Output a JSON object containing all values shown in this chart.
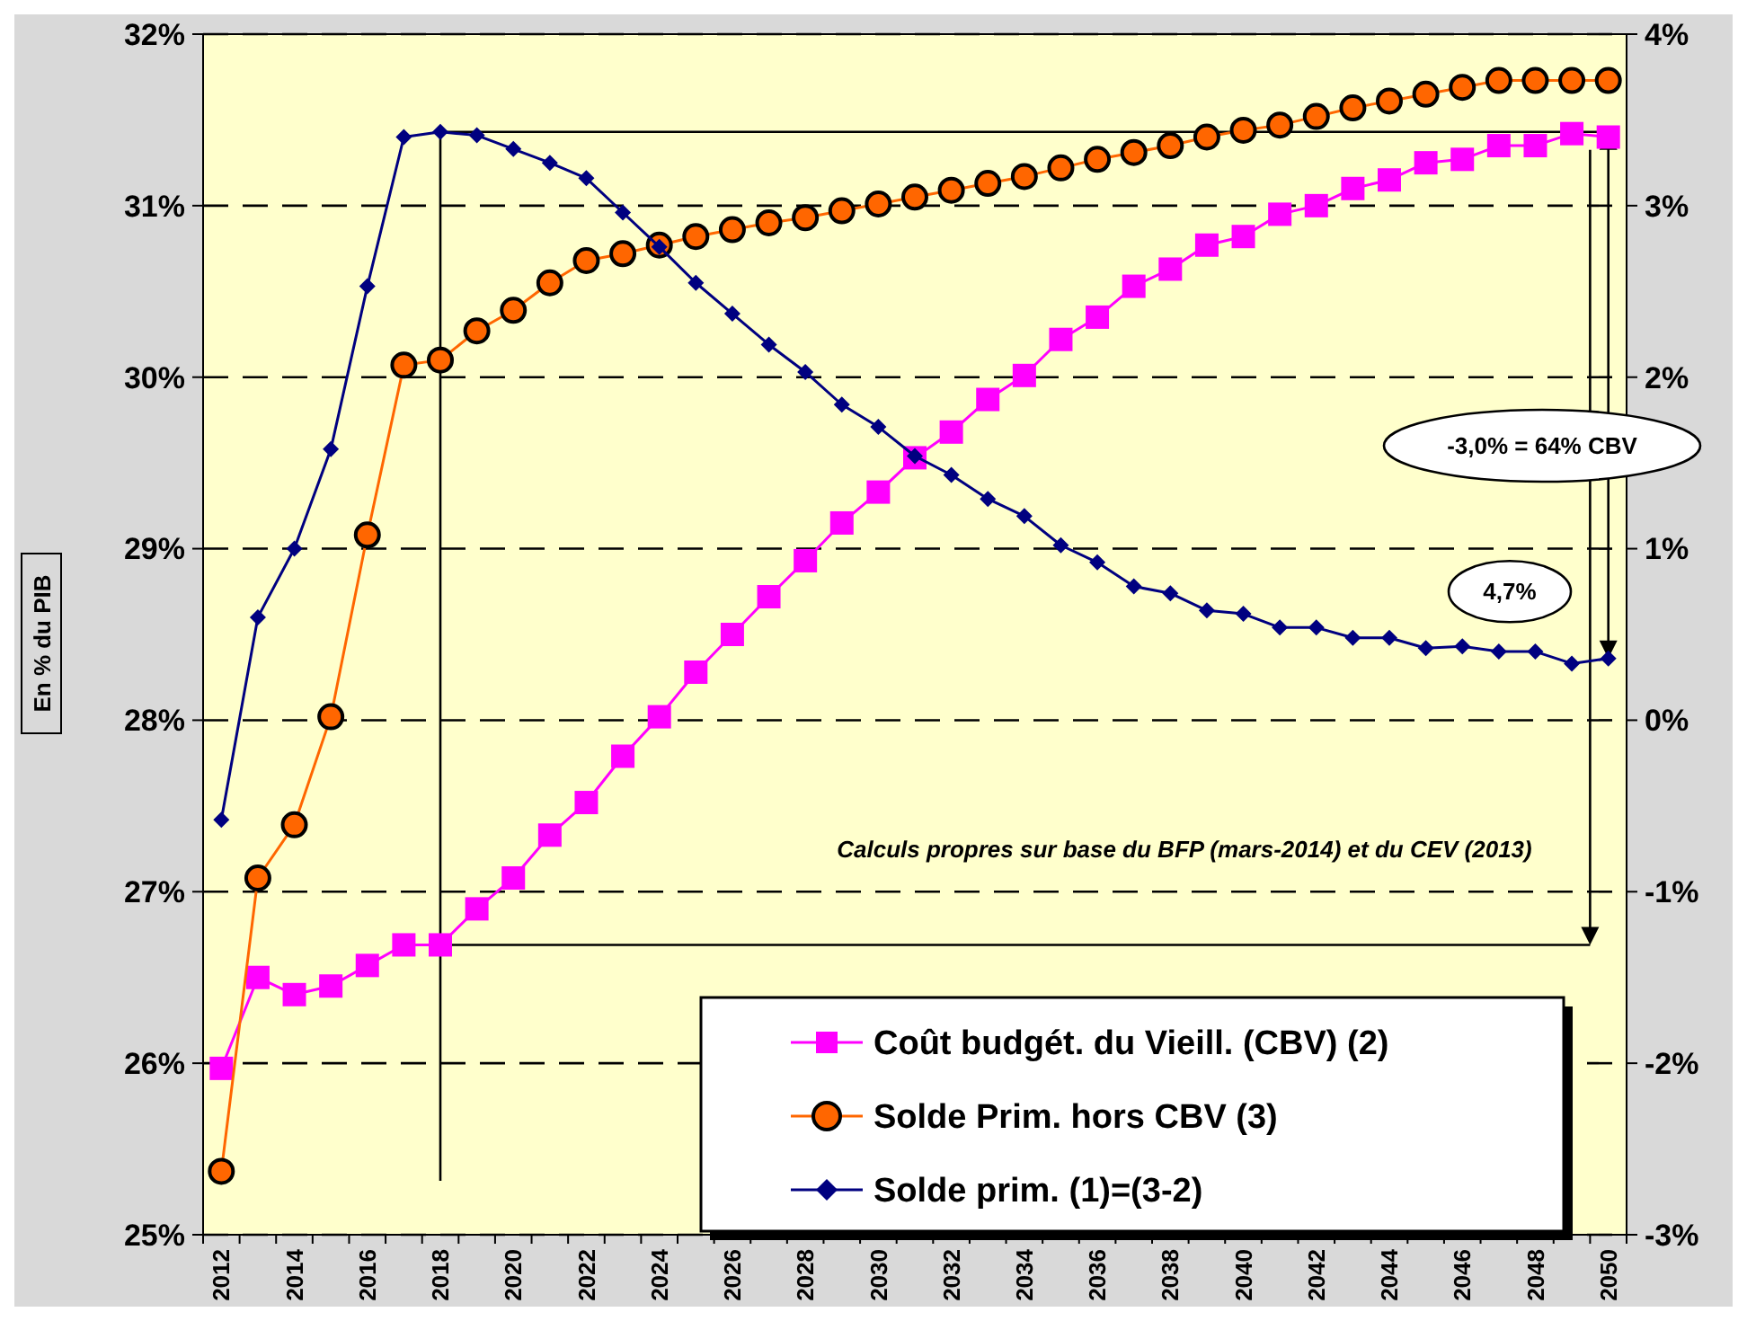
{
  "chart_data": {
    "type": "line",
    "ylabel": "En % du PIB",
    "categories": [
      "2012",
      null,
      "2014",
      null,
      "2016",
      null,
      "2018",
      null,
      "2020",
      null,
      "2022",
      null,
      "2024",
      null,
      "2026",
      null,
      "2028",
      null,
      "2030",
      null,
      "2032",
      null,
      "2034",
      null,
      "2036",
      null,
      "2038",
      null,
      "2040",
      null,
      "2042",
      null,
      "2044",
      null,
      "2046",
      null,
      "2048",
      null,
      "2050"
    ],
    "series": [
      {
        "name": "Coût budgét. du Vieill. (CBV) (2)",
        "color": "#ff00ff",
        "marker": "square",
        "values": [
          25.97,
          26.5,
          26.4,
          26.45,
          26.57,
          26.69,
          26.69,
          26.9,
          27.08,
          27.33,
          27.52,
          27.79,
          28.02,
          28.28,
          28.5,
          28.72,
          28.93,
          29.15,
          29.33,
          29.53,
          29.68,
          29.87,
          30.01,
          30.22,
          30.35,
          30.53,
          30.63,
          30.77,
          30.82,
          30.95,
          31.0,
          31.1,
          31.15,
          31.25,
          31.27,
          31.35,
          31.35,
          31.42,
          31.4
        ]
      },
      {
        "name": "Solde Prim. hors CBV (3)",
        "color": "#ff6600",
        "marker": "circle",
        "values": [
          25.37,
          27.08,
          27.39,
          28.02,
          29.08,
          30.07,
          30.1,
          30.27,
          30.39,
          30.55,
          30.68,
          30.72,
          30.77,
          30.82,
          30.86,
          30.9,
          30.93,
          30.97,
          31.01,
          31.05,
          31.09,
          31.13,
          31.17,
          31.22,
          31.27,
          31.31,
          31.35,
          31.4,
          31.44,
          31.47,
          31.52,
          31.57,
          31.61,
          31.65,
          31.69,
          31.73,
          31.73,
          31.73,
          31.73
        ]
      },
      {
        "name": "Solde prim. (1)=(3-2)",
        "color": "#000080",
        "marker": "diamond",
        "axis": "y2",
        "values": [
          -0.58,
          0.6,
          1.0,
          1.58,
          2.53,
          3.4,
          3.43,
          3.41,
          3.33,
          3.25,
          3.16,
          2.96,
          2.76,
          2.55,
          2.37,
          2.19,
          2.03,
          1.84,
          1.71,
          1.54,
          1.43,
          1.29,
          1.19,
          1.02,
          0.92,
          0.78,
          0.74,
          0.64,
          0.62,
          0.54,
          0.54,
          0.48,
          0.48,
          0.42,
          0.43,
          0.4,
          0.4,
          0.33,
          0.36
        ]
      }
    ],
    "ylim": [
      25,
      32
    ],
    "yticks": [
      {
        "value": 25,
        "label": "25%"
      },
      {
        "value": 26,
        "label": "26%"
      },
      {
        "value": 27,
        "label": "27%"
      },
      {
        "value": 28,
        "label": "28%"
      },
      {
        "value": 29,
        "label": "29%"
      },
      {
        "value": 30,
        "label": "30%"
      },
      {
        "value": 31,
        "label": "31%"
      },
      {
        "value": 32,
        "label": "32%"
      }
    ],
    "y2lim": [
      -3,
      4
    ],
    "y2ticks": [
      {
        "value": -3,
        "label": "-3%"
      },
      {
        "value": -2,
        "label": "-2%"
      },
      {
        "value": -1,
        "label": "-1%"
      },
      {
        "value": 0,
        "label": "0%"
      },
      {
        "value": 1,
        "label": "1%"
      },
      {
        "value": 2,
        "label": "2%"
      },
      {
        "value": 3,
        "label": "3%"
      },
      {
        "value": 4,
        "label": "4%"
      }
    ],
    "grid": "y",
    "legend": "bottom right",
    "line_style": "solid",
    "annotations": [
      "Calculs propres sur base du BFP (mars-2014) et du CEV (2013)",
      "-3,0% = 64% CBV",
      "4,7%"
    ]
  }
}
